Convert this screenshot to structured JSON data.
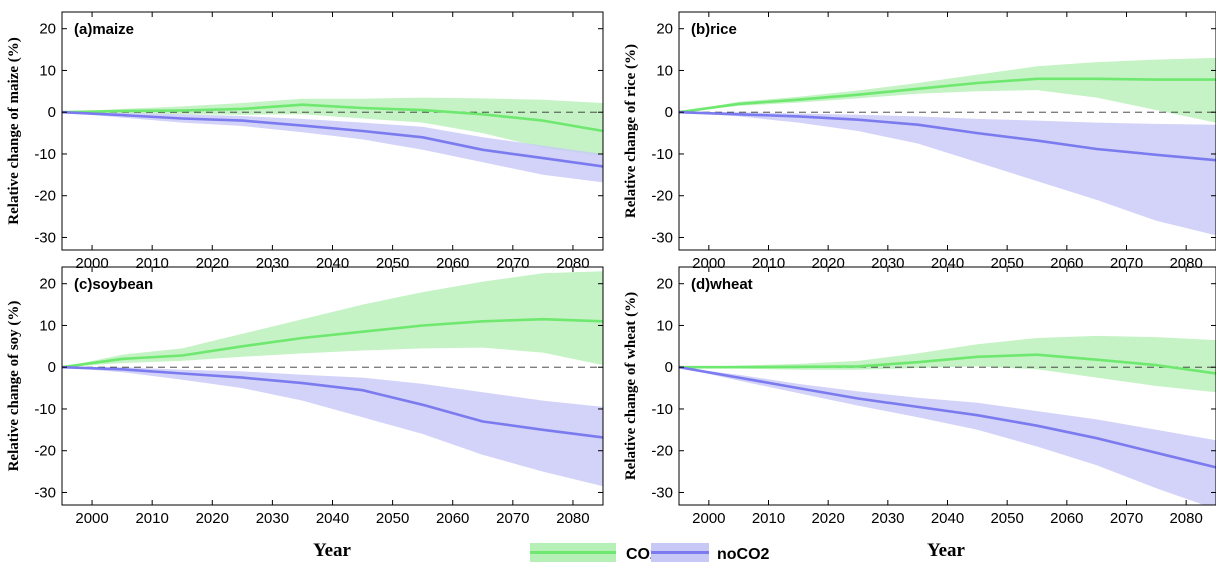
{
  "colors": {
    "co2_line": "#6ee86e",
    "co2_band": "#b7f0b7",
    "noco2_line": "#7b7bef",
    "noco2_band": "#c8c8f7"
  },
  "legend": [
    "CO2",
    "noCO2"
  ],
  "chart_data": [
    {
      "type": "line",
      "title": "(a)maize",
      "xlabel": "",
      "ylabel": "Relative change of maize (%)",
      "xlim": [
        1995,
        2085
      ],
      "ylim": [
        -33,
        24
      ],
      "xticks": [
        2000,
        2010,
        2020,
        2030,
        2040,
        2050,
        2060,
        2070,
        2080
      ],
      "yticks": [
        -30,
        -20,
        -10,
        0,
        10,
        20
      ],
      "x": [
        1995,
        2005,
        2015,
        2025,
        2035,
        2045,
        2055,
        2065,
        2075,
        2085
      ],
      "series": [
        {
          "name": "CO2",
          "values": [
            0,
            0.3,
            0.4,
            0.8,
            1.8,
            1.0,
            0.5,
            -0.5,
            -2.0,
            -4.5
          ],
          "lower": [
            0,
            -0.3,
            -0.5,
            -0.6,
            -0.5,
            -1.5,
            -2.5,
            -5.0,
            -8.5,
            -10.5
          ],
          "upper": [
            0,
            0.8,
            1.4,
            2.2,
            3.2,
            3.2,
            3.5,
            3.3,
            3.0,
            2.2
          ]
        },
        {
          "name": "noCO2",
          "values": [
            0,
            -0.7,
            -1.5,
            -2.0,
            -3.2,
            -4.5,
            -6.0,
            -9.0,
            -11.0,
            -13.0
          ],
          "lower": [
            0,
            -1.3,
            -2.5,
            -3.3,
            -4.8,
            -6.5,
            -9.0,
            -12.0,
            -15.0,
            -16.8
          ],
          "upper": [
            0,
            -0.2,
            -0.5,
            -0.9,
            -1.6,
            -2.5,
            -3.5,
            -6.0,
            -8.0,
            -10.0
          ]
        }
      ]
    },
    {
      "type": "line",
      "title": "(b)rice",
      "xlabel": "",
      "ylabel": "Relative change of rice (%)",
      "xlim": [
        1995,
        2085
      ],
      "ylim": [
        -33,
        24
      ],
      "xticks": [
        2000,
        2010,
        2020,
        2030,
        2040,
        2050,
        2060,
        2070,
        2080
      ],
      "yticks": [
        -30,
        -20,
        -10,
        0,
        10,
        20
      ],
      "x": [
        1995,
        2005,
        2015,
        2025,
        2035,
        2045,
        2055,
        2065,
        2075,
        2085
      ],
      "series": [
        {
          "name": "CO2",
          "values": [
            0,
            2.0,
            3.0,
            4.2,
            5.6,
            7.0,
            8.0,
            8.0,
            7.8,
            7.8
          ],
          "lower": [
            0,
            1.5,
            2.3,
            3.3,
            4.4,
            5.0,
            5.3,
            3.5,
            0.5,
            -2.5
          ],
          "upper": [
            0,
            2.5,
            3.7,
            5.2,
            7.0,
            9.0,
            11.0,
            12.0,
            12.6,
            13.0
          ]
        },
        {
          "name": "noCO2",
          "values": [
            0,
            -0.5,
            -1.0,
            -1.8,
            -3.0,
            -5.0,
            -6.8,
            -8.8,
            -10.2,
            -11.5
          ],
          "lower": [
            0,
            -1.0,
            -2.5,
            -4.5,
            -7.5,
            -12.0,
            -16.5,
            -21.0,
            -26.0,
            -29.5
          ],
          "upper": [
            0,
            0.0,
            -0.3,
            -0.6,
            -1.0,
            -1.6,
            -2.0,
            -2.5,
            -2.8,
            -3.0
          ]
        }
      ]
    },
    {
      "type": "line",
      "title": "(c)soybean",
      "xlabel": "Year",
      "ylabel": "Relative change of soy (%)",
      "xlim": [
        1995,
        2085
      ],
      "ylim": [
        -33,
        24
      ],
      "xticks": [
        2000,
        2010,
        2020,
        2030,
        2040,
        2050,
        2060,
        2070,
        2080
      ],
      "yticks": [
        -30,
        -20,
        -10,
        0,
        10,
        20
      ],
      "x": [
        1995,
        2005,
        2015,
        2025,
        2035,
        2045,
        2055,
        2065,
        2075,
        2085
      ],
      "series": [
        {
          "name": "CO2",
          "values": [
            0,
            2.0,
            2.8,
            5.0,
            7.0,
            8.5,
            10.0,
            11.0,
            11.5,
            11.0
          ],
          "lower": [
            0,
            1.0,
            1.5,
            2.5,
            3.3,
            4.0,
            4.5,
            4.7,
            3.5,
            0.5
          ],
          "upper": [
            0,
            3.0,
            4.5,
            8.0,
            11.5,
            15.0,
            18.0,
            20.5,
            22.5,
            23.0
          ]
        },
        {
          "name": "noCO2",
          "values": [
            0,
            -0.5,
            -1.5,
            -2.5,
            -3.8,
            -5.5,
            -9.0,
            -13.0,
            -15.0,
            -16.8
          ],
          "lower": [
            0,
            -1.2,
            -3.0,
            -5.0,
            -8.0,
            -12.0,
            -16.0,
            -21.0,
            -25.0,
            -28.5
          ],
          "upper": [
            0,
            0.0,
            -0.6,
            -1.0,
            -1.8,
            -2.5,
            -4.0,
            -6.0,
            -8.0,
            -9.5
          ]
        }
      ]
    },
    {
      "type": "line",
      "title": "(d)wheat",
      "xlabel": "Year",
      "ylabel": "Relative change of wheat (%)",
      "xlim": [
        1995,
        2085
      ],
      "ylim": [
        -33,
        24
      ],
      "xticks": [
        2000,
        2010,
        2020,
        2030,
        2040,
        2050,
        2060,
        2070,
        2080
      ],
      "yticks": [
        -30,
        -20,
        -10,
        0,
        10,
        20
      ],
      "x": [
        1995,
        2005,
        2015,
        2025,
        2035,
        2045,
        2055,
        2065,
        2075,
        2085
      ],
      "series": [
        {
          "name": "CO2",
          "values": [
            0,
            0.0,
            0.1,
            0.2,
            1.2,
            2.5,
            3.0,
            1.8,
            0.5,
            -1.5
          ],
          "lower": [
            0,
            -0.3,
            -0.6,
            -0.6,
            -0.2,
            0.2,
            -0.5,
            -2.5,
            -4.5,
            -6.0
          ],
          "upper": [
            0,
            0.4,
            0.8,
            1.5,
            3.3,
            5.5,
            7.0,
            7.5,
            7.2,
            6.5
          ]
        },
        {
          "name": "noCO2",
          "values": [
            0,
            -2.5,
            -5.0,
            -7.5,
            -9.5,
            -11.5,
            -14.0,
            -17.0,
            -20.5,
            -24.0
          ],
          "lower": [
            0,
            -3.2,
            -6.2,
            -9.2,
            -12.0,
            -15.0,
            -19.0,
            -23.5,
            -29.0,
            -34.0
          ],
          "upper": [
            0,
            -1.8,
            -4.0,
            -5.8,
            -7.3,
            -8.5,
            -10.5,
            -12.5,
            -15.0,
            -17.5
          ]
        }
      ]
    }
  ]
}
